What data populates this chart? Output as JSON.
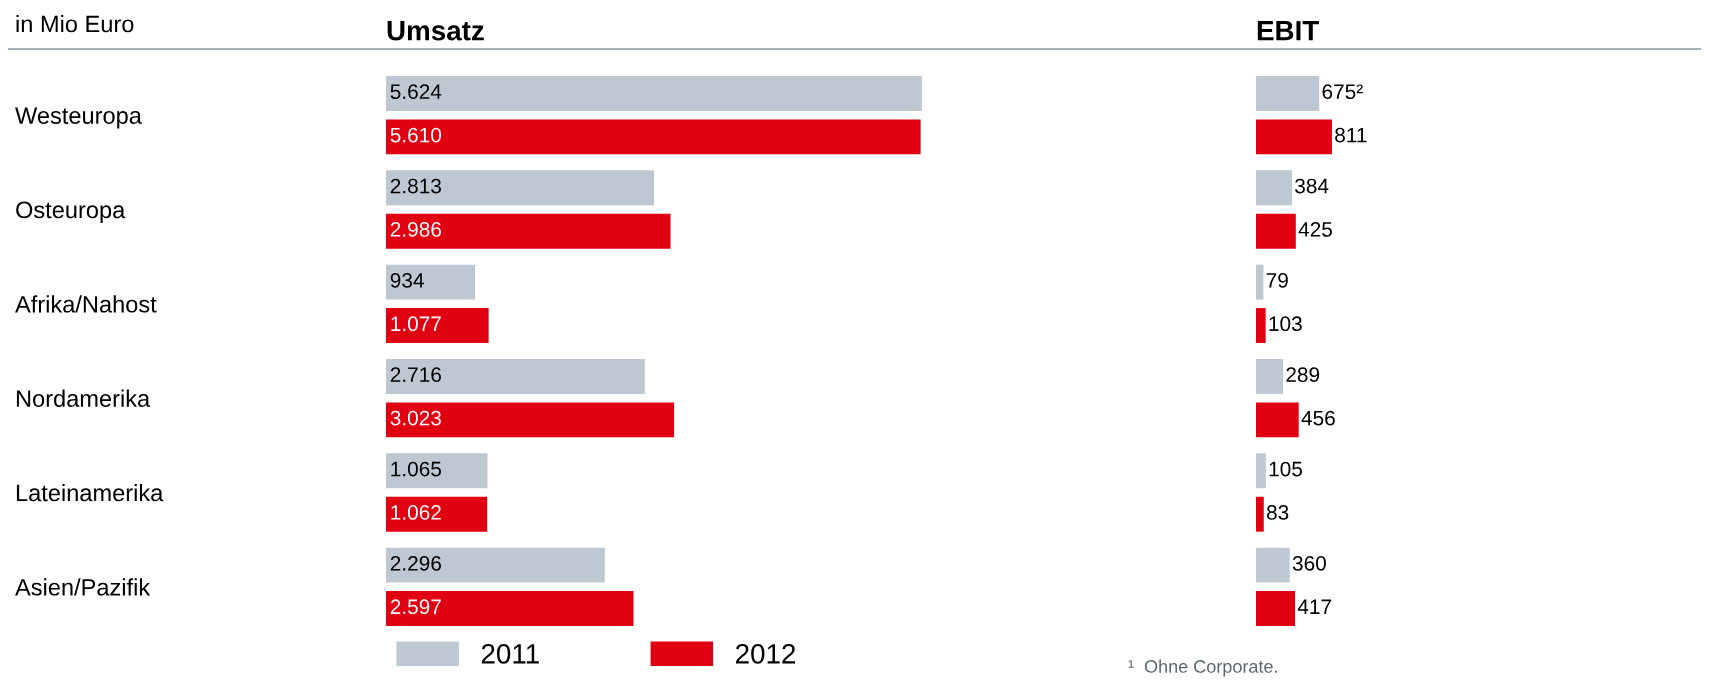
{
  "chart_data": [
    {
      "type": "bar",
      "orientation": "horizontal",
      "title": "Umsatz",
      "annotations": [
        "in Mio Euro"
      ],
      "categories": [
        "Westeuropa",
        "Osteuropa",
        "Afrika/Nahost",
        "Nordamerika",
        "Lateinamerika",
        "Asien/Pazifik"
      ],
      "series": [
        {
          "name": "2011",
          "color": "#bec8d2",
          "values": [
            5624,
            2813,
            934,
            2716,
            1065,
            2296
          ],
          "value_labels": [
            "5.624",
            "2.813",
            "934",
            "2.716",
            "1.065",
            "2.296"
          ]
        },
        {
          "name": "2012",
          "color": "#e10012",
          "values": [
            5610,
            2986,
            1077,
            3023,
            1062,
            2597
          ],
          "value_labels": [
            "5.610",
            "2.986",
            "1.077",
            "3.023",
            "1.062",
            "2.597"
          ]
        }
      ],
      "legend": "bottom"
    },
    {
      "type": "bar",
      "orientation": "horizontal",
      "title": "EBIT",
      "annotations": [
        "¹  Ohne Corporate."
      ],
      "categories": [
        null,
        null,
        null,
        null,
        null,
        null
      ],
      "series": [
        {
          "color": "#bec8d2",
          "values": [
            675,
            384,
            79,
            289,
            105,
            360
          ],
          "value_labels": [
            "675²",
            "384",
            "79",
            "289",
            "105",
            "360"
          ]
        },
        {
          "color": "#e10012",
          "values": [
            811,
            425,
            103,
            456,
            83,
            417
          ],
          "value_labels": [
            "811",
            "425",
            "103",
            "456",
            "83",
            "417"
          ]
        }
      ]
    }
  ]
}
